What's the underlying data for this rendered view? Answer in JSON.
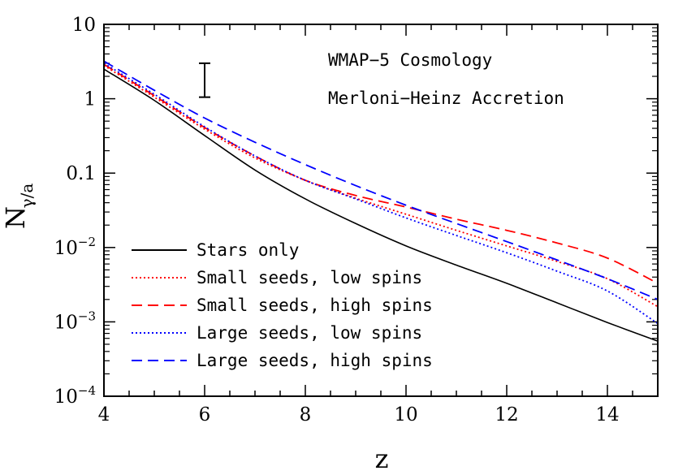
{
  "chart_data": {
    "type": "line",
    "title": "",
    "xlabel": "z",
    "ylabel_main": "N",
    "ylabel_sub": "γ/a",
    "xlim": [
      4,
      15
    ],
    "ylim": [
      0.0001,
      10
    ],
    "yscale": "log",
    "x_ticks": [
      4,
      6,
      8,
      10,
      12,
      14
    ],
    "y_ticks": [
      {
        "value": 10,
        "label": "10"
      },
      {
        "value": 1,
        "label": "1"
      },
      {
        "value": 0.1,
        "label": "0.1"
      },
      {
        "value": 0.01,
        "base": "10",
        "exp": "−2"
      },
      {
        "value": 0.001,
        "base": "10",
        "exp": "−3"
      },
      {
        "value": 0.0001,
        "base": "10",
        "exp": "−4"
      }
    ],
    "grid": false,
    "legend_position": "bottom-left",
    "annotations": [
      "WMAP−5 Cosmology",
      "Merloni−Heinz Accretion"
    ],
    "error_bar": {
      "x": 6,
      "y_low": 1.05,
      "y_high": 3.0
    },
    "series": [
      {
        "name": "Stars only",
        "color": "#000000",
        "dash": "solid",
        "x": [
          4,
          5,
          6,
          7,
          8,
          9,
          10,
          11,
          12,
          13,
          14,
          15
        ],
        "y": [
          2.5,
          0.95,
          0.32,
          0.11,
          0.045,
          0.021,
          0.0105,
          0.0058,
          0.0033,
          0.0018,
          0.00098,
          0.00055
        ]
      },
      {
        "name": "Small seeds, low spins",
        "color": "#ff0000",
        "dash": "dotted",
        "x": [
          4,
          5,
          6,
          7,
          8,
          9,
          10,
          11,
          12,
          13,
          14,
          15
        ],
        "y": [
          2.8,
          1.05,
          0.39,
          0.16,
          0.08,
          0.046,
          0.028,
          0.017,
          0.0105,
          0.0065,
          0.0038,
          0.0016
        ]
      },
      {
        "name": "Small seeds, high spins",
        "color": "#ff0000",
        "dash": "dashed",
        "x": [
          4,
          5,
          6,
          7,
          8,
          9,
          10,
          11,
          12,
          13,
          14,
          15
        ],
        "y": [
          2.9,
          1.1,
          0.41,
          0.17,
          0.08,
          0.05,
          0.035,
          0.024,
          0.017,
          0.0115,
          0.0072,
          0.0033
        ]
      },
      {
        "name": "Large seeds, low spins",
        "color": "#0000ff",
        "dash": "dotted",
        "x": [
          4,
          5,
          6,
          7,
          8,
          9,
          10,
          11,
          12,
          13,
          14,
          15
        ],
        "y": [
          3.0,
          1.15,
          0.42,
          0.17,
          0.08,
          0.045,
          0.025,
          0.0145,
          0.0085,
          0.0048,
          0.0026,
          0.00095
        ]
      },
      {
        "name": "Large seeds, high spins",
        "color": "#0000ff",
        "dash": "dashed",
        "x": [
          4,
          5,
          6,
          7,
          8,
          9,
          10,
          11,
          12,
          13,
          14,
          15
        ],
        "y": [
          3.2,
          1.3,
          0.55,
          0.26,
          0.13,
          0.068,
          0.037,
          0.021,
          0.012,
          0.0068,
          0.0038,
          0.002
        ]
      }
    ]
  }
}
